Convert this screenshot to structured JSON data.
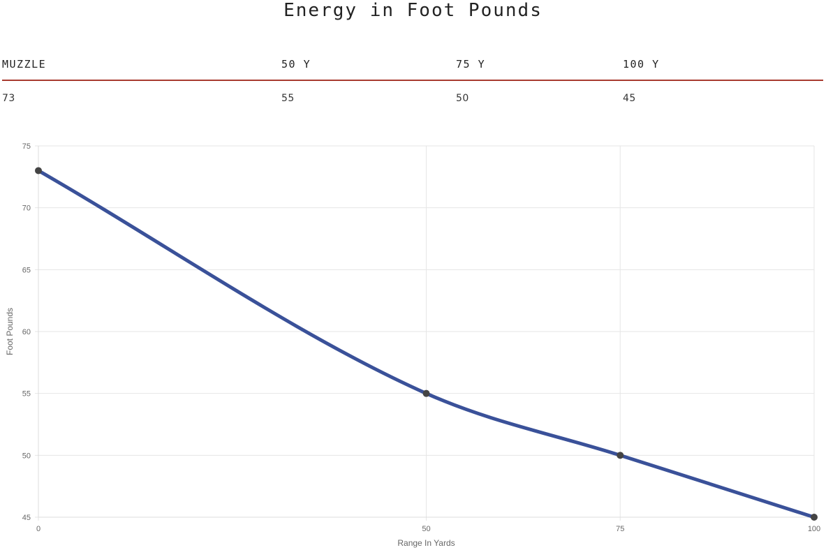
{
  "title": "Energy in Foot Pounds",
  "table": {
    "headers": [
      "MUZZLE",
      "50 Y",
      "75 Y",
      "100 Y"
    ],
    "values": [
      "73",
      "55",
      "50",
      "45"
    ]
  },
  "colors": {
    "line": "#3a5199",
    "point": "#444444",
    "grid": "#e6e6e6",
    "table_rule": "#a83a2f"
  },
  "chart_data": {
    "type": "line",
    "x": [
      0,
      50,
      75,
      100
    ],
    "series": [
      {
        "values": [
          73,
          55,
          50,
          45
        ]
      }
    ],
    "xlabel": "Range In Yards",
    "ylabel": "Foot Pounds",
    "xlim": [
      0,
      100
    ],
    "ylim": [
      45,
      75
    ],
    "xticks": [
      0,
      50,
      75,
      100
    ],
    "yticks": [
      45,
      50,
      55,
      60,
      65,
      70,
      75
    ],
    "grid": true,
    "smooth": true
  }
}
